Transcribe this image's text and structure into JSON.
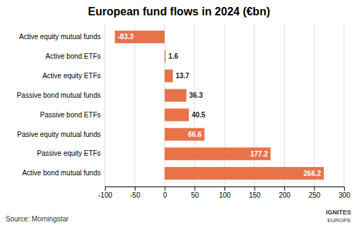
{
  "chart_data": {
    "type": "bar",
    "orientation": "horizontal",
    "title": "European fund flows in 2024 (€bn)",
    "categories": [
      "Active equity mutual funds",
      "Active bond ETFs",
      "Active equity ETFs",
      "Passive bond mutual funds",
      "Passive bond ETFs",
      "Pasive equity mutual funds",
      "Passive equity ETFs",
      "Active bond mutual funds"
    ],
    "values": [
      -83.3,
      1.6,
      13.7,
      36.3,
      40.5,
      66.6,
      177.2,
      266.2
    ],
    "color": "#E8734A",
    "xlim": [
      -100,
      300
    ],
    "xticks": [
      -100,
      -50,
      0,
      50,
      100,
      150,
      200,
      250,
      300
    ],
    "grid": true,
    "data_labels": true,
    "annotations": [
      "Source: Morningstar",
      "IGNITES",
      "EUROPE"
    ]
  }
}
